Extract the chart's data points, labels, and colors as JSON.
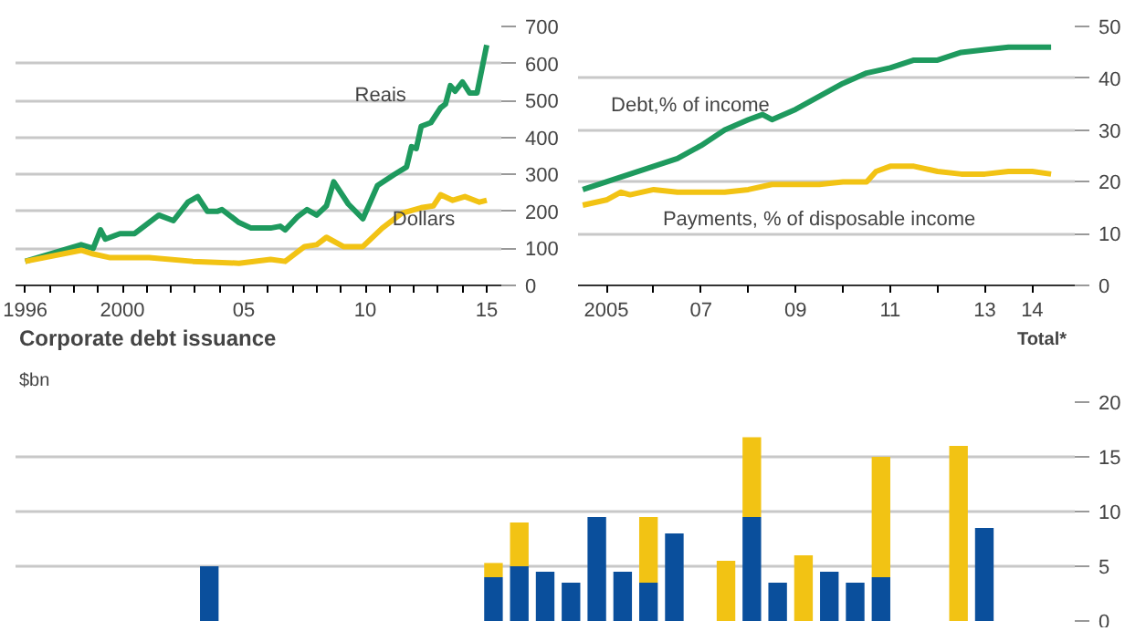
{
  "chart_data": [
    {
      "type": "line",
      "grid": "y",
      "legend": false,
      "xlim": [
        1995.6,
        2015.6
      ],
      "xticks": [
        {
          "value": 1996,
          "label": "1996"
        },
        {
          "value": 1997,
          "label": null
        },
        {
          "value": 1998,
          "label": null
        },
        {
          "value": 1999,
          "label": null
        },
        {
          "value": 2000,
          "label": "2000"
        },
        {
          "value": 2001,
          "label": null
        },
        {
          "value": 2002,
          "label": null
        },
        {
          "value": 2003,
          "label": null
        },
        {
          "value": 2004,
          "label": null
        },
        {
          "value": 2005,
          "label": "05"
        },
        {
          "value": 2006,
          "label": null
        },
        {
          "value": 2007,
          "label": null
        },
        {
          "value": 2008,
          "label": null
        },
        {
          "value": 2009,
          "label": null
        },
        {
          "value": 2010,
          "label": "10"
        },
        {
          "value": 2011,
          "label": null
        },
        {
          "value": 2012,
          "label": null
        },
        {
          "value": 2013,
          "label": null
        },
        {
          "value": 2014,
          "label": null
        },
        {
          "value": 2015,
          "label": "15"
        }
      ],
      "ylim": [
        0,
        700
      ],
      "yticks": [
        0,
        100,
        200,
        300,
        400,
        500,
        600,
        700
      ],
      "series": [
        {
          "name": "Reais",
          "color": "#1e9a5e",
          "x": [
            1996,
            1998.3,
            1998.8,
            1999.1,
            1999.3,
            1999.9,
            2000.5,
            2001.5,
            2002.1,
            2002.7,
            2003.1,
            2003.5,
            2003.9,
            2004.1,
            2004.8,
            2005.3,
            2006.1,
            2006.5,
            2006.7,
            2007.2,
            2007.6,
            2008,
            2008.4,
            2008.7,
            2009.3,
            2009.9,
            2010.5,
            2011.2,
            2011.7,
            2011.9,
            2012.1,
            2012.3,
            2012.7,
            2013.1,
            2013.3,
            2013.5,
            2013.7,
            2014,
            2014.3,
            2014.6,
            2015
          ],
          "values": [
            65,
            110,
            100,
            150,
            125,
            140,
            140,
            190,
            175,
            225,
            240,
            200,
            200,
            205,
            170,
            155,
            155,
            160,
            150,
            185,
            205,
            190,
            215,
            280,
            220,
            180,
            270,
            300,
            320,
            375,
            370,
            430,
            440,
            480,
            490,
            540,
            525,
            550,
            520,
            520,
            650
          ]
        },
        {
          "name": "Dollars",
          "color": "#f2c314",
          "x": [
            1996,
            1998.3,
            1998.8,
            1999.5,
            2001.1,
            2002.9,
            2004.8,
            2006.1,
            2006.7,
            2007.5,
            2008,
            2008.4,
            2009.1,
            2009.9,
            2010.7,
            2011.5,
            2012.3,
            2012.8,
            2013.1,
            2013.6,
            2014.1,
            2014.7,
            2015
          ],
          "values": [
            65,
            95,
            85,
            75,
            75,
            65,
            60,
            70,
            65,
            105,
            110,
            130,
            105,
            105,
            155,
            195,
            210,
            215,
            245,
            230,
            240,
            225,
            230
          ]
        }
      ]
    },
    {
      "type": "line",
      "grid": "y",
      "legend": false,
      "xlim": [
        2004.4,
        2014.9
      ],
      "xticks": [
        {
          "value": 2005,
          "label": "2005"
        },
        {
          "value": 2006,
          "label": null
        },
        {
          "value": 2007,
          "label": "07"
        },
        {
          "value": 2008,
          "label": null
        },
        {
          "value": 2009,
          "label": "09"
        },
        {
          "value": 2010,
          "label": null
        },
        {
          "value": 2011,
          "label": "11"
        },
        {
          "value": 2012,
          "label": null
        },
        {
          "value": 2013,
          "label": "13"
        },
        {
          "value": 2014,
          "label": "14"
        }
      ],
      "ylim": [
        0,
        50
      ],
      "yticks": [
        0,
        10,
        20,
        30,
        40,
        50
      ],
      "series": [
        {
          "name": "Debt,% of income",
          "color": "#1e9a5e",
          "x": [
            2004.5,
            2005,
            2005.5,
            2006,
            2006.5,
            2007,
            2007.5,
            2008,
            2008.3,
            2008.5,
            2009,
            2009.5,
            2010,
            2010.5,
            2011,
            2011.5,
            2012,
            2012.5,
            2013,
            2013.5,
            2014,
            2014.4
          ],
          "values": [
            18.5,
            20,
            21.5,
            23,
            24.5,
            27,
            30,
            32,
            33,
            32,
            34,
            36.5,
            39,
            41,
            42,
            43.5,
            43.5,
            45,
            45.5,
            46,
            46,
            46
          ]
        },
        {
          "name": "Payments, % of disposable income",
          "color": "#f2c314",
          "x": [
            2004.5,
            2005,
            2005.3,
            2005.5,
            2006,
            2006.5,
            2007,
            2007.5,
            2008,
            2008.5,
            2009,
            2009.5,
            2010,
            2010.5,
            2010.7,
            2011,
            2011.5,
            2012,
            2012.5,
            2013,
            2013.5,
            2014,
            2014.4
          ],
          "values": [
            15.5,
            16.5,
            18,
            17.5,
            18.5,
            18,
            18,
            18,
            18.5,
            19.5,
            19.5,
            19.5,
            20,
            20,
            22,
            23,
            23,
            22,
            21.5,
            21.5,
            22,
            22,
            21.5
          ]
        }
      ]
    },
    {
      "type": "bar",
      "stacked": true,
      "title": "Corporate debt issuance",
      "ylabel": "$bn",
      "grid": "y",
      "legend": "top right",
      "tick_labels": "y",
      "categories": [
        null,
        null,
        null,
        null,
        null,
        null,
        null,
        null,
        null,
        null,
        null,
        null,
        null,
        null,
        null,
        null,
        null,
        null,
        null,
        null,
        null,
        null,
        null,
        null,
        null,
        null,
        null,
        null,
        null,
        null,
        null,
        null,
        null,
        null,
        null,
        null,
        null,
        null,
        null,
        null,
        null
      ],
      "ylim": [
        0,
        20
      ],
      "yticks": [
        0,
        5,
        10,
        15,
        20
      ],
      "series": [
        {
          "color": "#0a4f9c",
          "values": [
            null,
            null,
            null,
            null,
            null,
            null,
            null,
            5,
            null,
            null,
            null,
            null,
            null,
            null,
            null,
            null,
            null,
            null,
            4,
            5,
            4.5,
            3.5,
            9.5,
            4.5,
            3.5,
            8,
            null,
            null,
            9.5,
            3.5,
            null,
            4.5,
            3.5,
            4,
            null,
            null,
            null,
            8.5,
            null,
            null,
            null
          ]
        },
        {
          "name": "Total*",
          "color": "#f2c314",
          "values": [
            null,
            null,
            null,
            null,
            null,
            null,
            null,
            null,
            null,
            null,
            null,
            null,
            null,
            null,
            null,
            null,
            null,
            null,
            1.3,
            4,
            null,
            null,
            null,
            null,
            6,
            null,
            null,
            5.5,
            7.3,
            null,
            6,
            null,
            null,
            11,
            null,
            null,
            16,
            null,
            null,
            null,
            null
          ]
        }
      ]
    }
  ]
}
